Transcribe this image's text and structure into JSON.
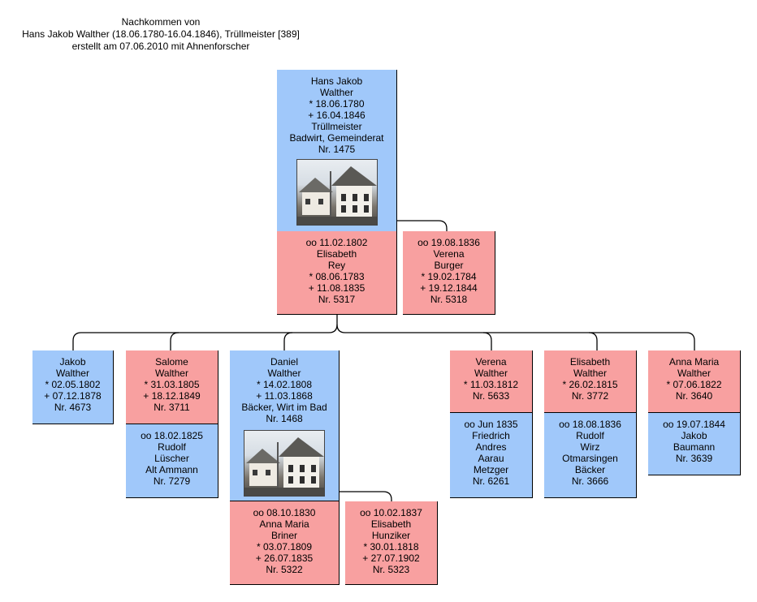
{
  "header": {
    "line1": "Nachkommen von",
    "line2": "Hans Jakob Walther (18.06.1780-16.04.1846), Trüllmeister [389]",
    "line3": "erstellt am 07.06.2010 mit Ahnenforscher"
  },
  "colors": {
    "male": "#a0c8fa",
    "female": "#f8a0a0"
  },
  "root": {
    "lines": [
      "Hans Jakob",
      "Walther",
      "* 18.06.1780",
      "+ 16.04.1846",
      "Trüllmeister",
      "Badwirt, Gemeinderat",
      "Nr. 1475"
    ],
    "photo": "house-photo"
  },
  "root_spouses": [
    {
      "lines": [
        "oo 11.02.1802",
        "Elisabeth",
        "Rey",
        "* 08.06.1783",
        "+ 11.08.1835",
        "Nr. 5317"
      ]
    },
    {
      "lines": [
        "oo 19.08.1836",
        "Verena",
        "Burger",
        "* 19.02.1784",
        "+ 19.12.1844",
        "Nr. 5318"
      ]
    }
  ],
  "children": [
    {
      "lines": [
        "Jakob",
        "Walther",
        "* 02.05.1802",
        "+ 07.12.1878",
        "Nr. 4673"
      ],
      "spouse": null
    },
    {
      "lines": [
        "Salome",
        "Walther",
        "* 31.03.1805",
        "+ 18.12.1849",
        "Nr. 3711"
      ],
      "spouse": [
        "oo 18.02.1825",
        "Rudolf",
        "Lüscher",
        "Alt Ammann",
        "Nr. 7279"
      ]
    },
    {
      "lines": [
        "Daniel",
        "Walther",
        "* 14.02.1808",
        "+ 11.03.1868",
        "Bäcker, Wirt im Bad",
        "Nr. 1468"
      ],
      "photo": "house-photo",
      "spouses": [
        [
          "oo 08.10.1830",
          "Anna Maria",
          "Briner",
          "* 03.07.1809",
          "+ 26.07.1835",
          "Nr. 5322"
        ],
        [
          "oo 10.02.1837",
          "Elisabeth",
          "Hunziker",
          "* 30.01.1818",
          "+ 27.07.1902",
          "Nr. 5323"
        ]
      ]
    },
    {
      "lines": [
        "Verena",
        "Walther",
        "* 11.03.1812",
        "Nr. 5633"
      ],
      "spouse": [
        "oo Jun 1835",
        "Friedrich",
        "Andres",
        "Aarau",
        "Metzger",
        "Nr. 6261"
      ]
    },
    {
      "lines": [
        "Elisabeth",
        "Walther",
        "* 26.02.1815",
        "Nr. 3772"
      ],
      "spouse": [
        "oo 18.08.1836",
        "Rudolf",
        "Wirz",
        "Otmarsingen",
        "Bäcker",
        "Nr. 3666"
      ]
    },
    {
      "lines": [
        "Anna Maria",
        "Walther",
        "* 07.06.1822",
        "Nr. 3640"
      ],
      "spouse": [
        "oo 19.07.1844",
        "Jakob",
        "Baumann",
        "Nr. 3639"
      ]
    }
  ]
}
